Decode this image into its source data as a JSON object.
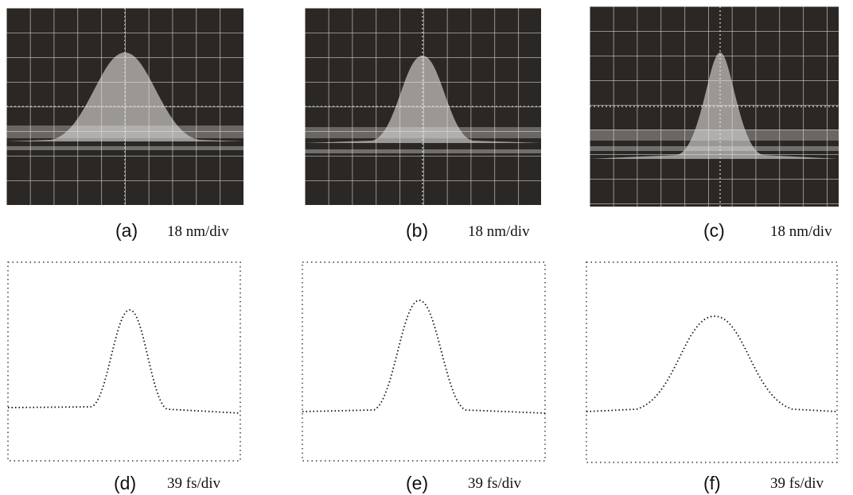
{
  "panels": [
    {
      "label": "(a)",
      "scale": "18 nm/div"
    },
    {
      "label": "(b)",
      "scale": "18 nm/div"
    },
    {
      "label": "(c)",
      "scale": "18 nm/div"
    },
    {
      "label": "(d)",
      "scale": "39 fs/div"
    },
    {
      "label": "(e)",
      "scale": "39 fs/div"
    },
    {
      "label": "(f)",
      "scale": "39 fs/div"
    }
  ]
}
